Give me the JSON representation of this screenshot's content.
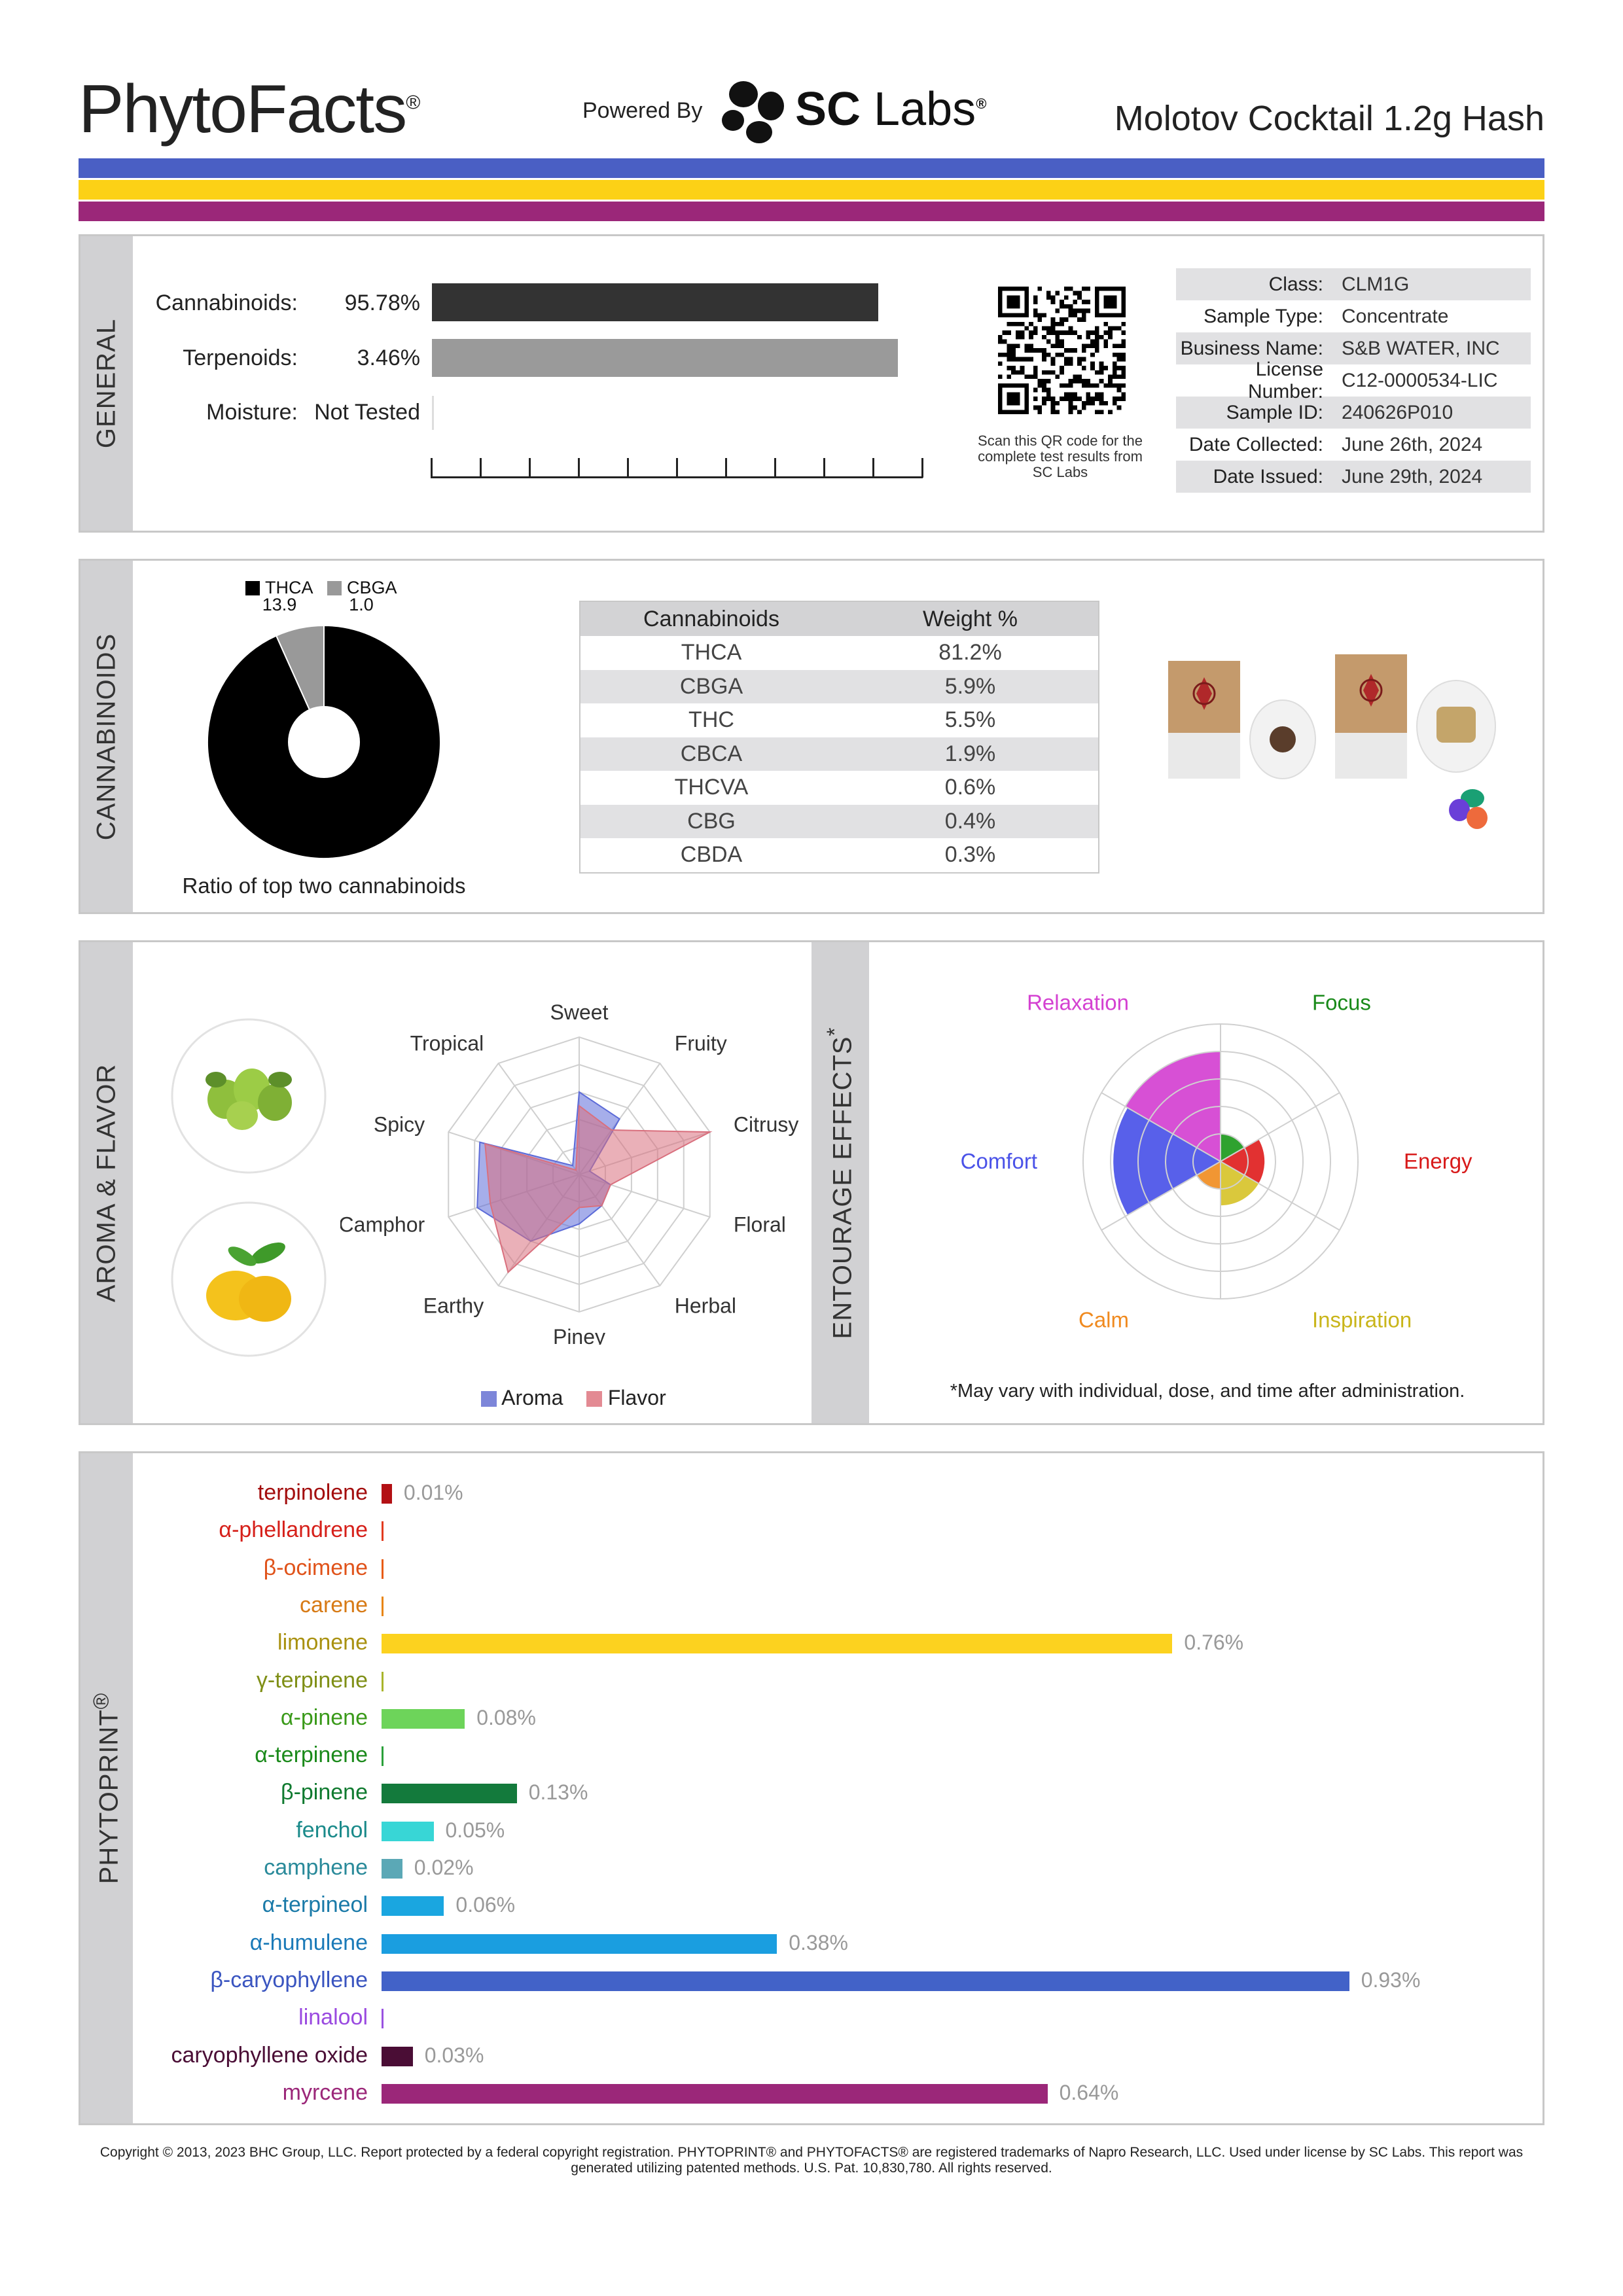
{
  "header": {
    "brand": "PhytoFacts",
    "brand_mark": "®",
    "powered_by": "Powered By",
    "lab_logo_text": "SC",
    "lab_logo_text2": "Labs",
    "lab_mark": "®",
    "product_name": "Molotov Cocktail 1.2g Hash",
    "stripe_colors": [
      "#4a5fc4",
      "#fcd116",
      "#9b2779"
    ]
  },
  "general": {
    "section_label": "GENERAL",
    "rows": [
      {
        "label": "Cannabinoids:",
        "value": "95.78%",
        "percent": 95.78,
        "color": "#333333"
      },
      {
        "label": "Terpenoids:",
        "value": "3.46%",
        "percent": 3.46,
        "color": "#9a9a9a"
      },
      {
        "label": "Moisture:",
        "value": "Not Tested"
      }
    ],
    "qr_caption": "Scan this QR code for the complete test results from SC Labs",
    "info": [
      {
        "key": "Class:",
        "value": "CLM1G"
      },
      {
        "key": "Sample Type:",
        "value": "Concentrate"
      },
      {
        "key": "Business Name:",
        "value": "S&B WATER, INC"
      },
      {
        "key": "License Number:",
        "value": "C12-0000534-LIC"
      },
      {
        "key": "Sample ID:",
        "value": "240626P010"
      },
      {
        "key": "Date Collected:",
        "value": "June 26th, 2024"
      },
      {
        "key": "Date Issued:",
        "value": "June 29th, 2024"
      }
    ]
  },
  "cannabinoids": {
    "section_label": "CANNABINOIDS",
    "donut_caption": "Ratio of top two cannabinoids",
    "table_headers": [
      "Cannabinoids",
      "Weight %"
    ],
    "table_rows": [
      [
        "THCA",
        "81.2%"
      ],
      [
        "CBGA",
        "5.9%"
      ],
      [
        "THC",
        "5.5%"
      ],
      [
        "CBCA",
        "1.9%"
      ],
      [
        "THCVA",
        "0.6%"
      ],
      [
        "CBG",
        "0.4%"
      ],
      [
        "CBDA",
        "0.3%"
      ]
    ]
  },
  "aroma": {
    "section_label": "AROMA & FLAVOR",
    "legend": [
      "Aroma",
      "Flavor"
    ]
  },
  "entourage": {
    "section_label": "ENTOURAGE EFFECTS",
    "footnote_mark": "*",
    "footnote": "*May vary with individual, dose, and time after administration."
  },
  "phytoprint": {
    "section_label": "PHYTOPRINT",
    "mark": "®"
  },
  "copyright": "Copyright © 2013, 2023 BHC Group, LLC. Report protected by a federal copyright registration. PHYTOPRINT® and PHYTOFACTS® are registered trademarks of Napro Research, LLC. Used under license by SC Labs. This report was generated utilizing patented methods. U.S. Pat. 10,830,780. All rights reserved.",
  "chart_data": [
    {
      "type": "pie",
      "legend_placement": "top",
      "series": [
        {
          "name": "THCA",
          "value": 13.9,
          "color": "#000000"
        },
        {
          "name": "CBGA",
          "value": 1.0,
          "color": "#999999"
        }
      ]
    },
    {
      "type": "radar",
      "axes": [
        "Sweet",
        "Fruity",
        "Citrusy",
        "Floral",
        "Herbal",
        "Piney",
        "Earthy",
        "Camphor",
        "Spicy",
        "Tropical"
      ],
      "rmax": 5,
      "series": [
        {
          "name": "Aroma",
          "color": "#5c6bd8",
          "values": [
            3,
            2.5,
            0.4,
            1.2,
            1.4,
            1.8,
            3,
            3.9,
            3.8,
            0.4
          ]
        },
        {
          "name": "Flavor",
          "color": "#d9707e",
          "values": [
            2.5,
            2,
            5,
            1.2,
            1.4,
            1.2,
            4.4,
            3.4,
            3.6,
            0.2
          ]
        }
      ],
      "legend_placement": "bottom"
    },
    {
      "type": "polar",
      "categories": [
        "Focus",
        "Energy",
        "Inspiration",
        "Calm",
        "Comfort",
        "Relaxation"
      ],
      "rmax": 5,
      "values": [
        1,
        1.6,
        1.6,
        1,
        3.9,
        4
      ],
      "colors": [
        "#1d9a1d",
        "#e0201f",
        "#d7c32b",
        "#f08d22",
        "#4a52e8",
        "#d441d1"
      ],
      "label_colors": [
        "#1a8a1a",
        "#d81a1a",
        "#c9b51a",
        "#f08a1f",
        "#4a52e8",
        "#d441d1"
      ]
    },
    {
      "type": "bar",
      "orientation": "horizontal",
      "xlim": [
        0,
        1
      ],
      "categories": [
        "terpinolene",
        "α-phellandrene",
        "β-ocimene",
        "carene",
        "limonene",
        "γ-terpinene",
        "α-pinene",
        "α-terpinene",
        "β-pinene",
        "fenchol",
        "camphene",
        "α-terpineol",
        "α-humulene",
        "β-caryophyllene",
        "linalool",
        "caryophyllene oxide",
        "myrcene"
      ],
      "values": [
        0.01,
        0,
        0,
        0,
        0.76,
        0,
        0.08,
        0,
        0.13,
        0.05,
        0.02,
        0.06,
        0.38,
        0.93,
        0,
        0.03,
        0.64
      ],
      "value_labels": [
        "0.01%",
        "",
        "",
        "",
        "0.76%",
        "",
        "0.08%",
        "",
        "0.13%",
        "0.05%",
        "0.02%",
        "0.06%",
        "0.38%",
        "0.93%",
        "",
        "0.03%",
        "0.64%"
      ],
      "bar_colors": [
        "#b31014",
        "#e23b1f",
        "#e85c15",
        "#e88513",
        "#fcd21f",
        "#a8b42a",
        "#6dd45a",
        "#2aa03a",
        "#137a3c",
        "#38d6d6",
        "#5ba8b6",
        "#1aa6e0",
        "#1a9ee0",
        "#4262c8",
        "#9a52e0",
        "#4a0d35",
        "#9b2779"
      ],
      "label_colors": [
        "#a30d0d",
        "#d6201a",
        "#e0531a",
        "#d77a15",
        "#a99110",
        "#7f8f16",
        "#3a9a1a",
        "#1b8a1b",
        "#0f7a2f",
        "#1a8a8a",
        "#2a8a9a",
        "#1a7aa8",
        "#1a7ab8",
        "#3a55c0",
        "#9a4ae0",
        "#4a0d35",
        "#9b2779"
      ]
    }
  ]
}
